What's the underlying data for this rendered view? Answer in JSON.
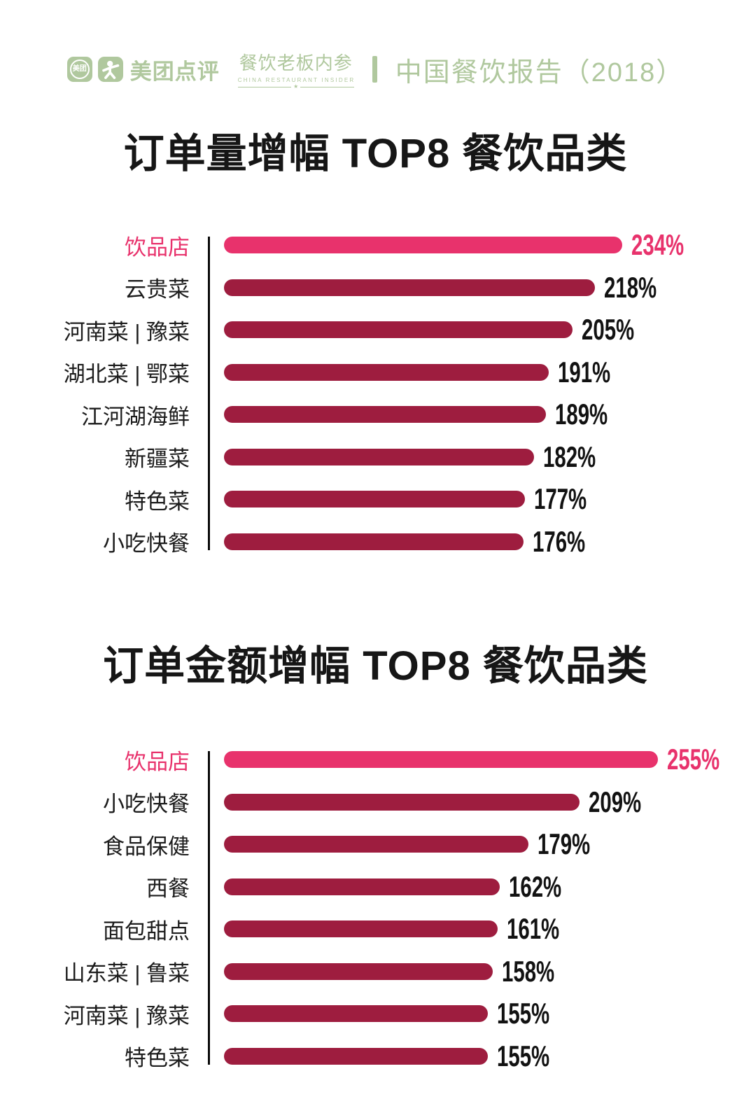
{
  "header": {
    "meituan_badge_text": "美团",
    "brand": "美团点评",
    "insider_cn": "餐饮老板内参",
    "insider_en": "CHINA RESTAURANT INSIDER",
    "star": "★",
    "report": "中国餐饮报告（2018）"
  },
  "colors": {
    "brand_green": "#b0c89e",
    "highlight_pink": "#e8326c",
    "bar_red": "#9e1d3f",
    "ink": "#161616"
  },
  "chart_data": [
    {
      "type": "bar",
      "orientation": "horizontal",
      "title": "订单量增幅 TOP8 餐饮品类",
      "categories": [
        "饮品店",
        "云贵菜",
        "河南菜 | 豫菜",
        "湖北菜 | 鄂菜",
        "江河湖海鲜",
        "新疆菜",
        "特色菜",
        "小吃快餐"
      ],
      "values": [
        234,
        218,
        205,
        191,
        189,
        182,
        177,
        176
      ],
      "value_suffix": "%",
      "highlight_index": 0,
      "xlim": [
        0,
        255
      ],
      "grid": false,
      "legend": false
    },
    {
      "type": "bar",
      "orientation": "horizontal",
      "title": "订单金额增幅 TOP8 餐饮品类",
      "categories": [
        "饮品店",
        "小吃快餐",
        "食品保健",
        "西餐",
        "面包甜点",
        "山东菜 | 鲁菜",
        "河南菜 | 豫菜",
        "特色菜"
      ],
      "values": [
        255,
        209,
        179,
        162,
        161,
        158,
        155,
        155
      ],
      "value_suffix": "%",
      "highlight_index": 0,
      "xlim": [
        0,
        255
      ],
      "grid": false,
      "legend": false
    }
  ]
}
